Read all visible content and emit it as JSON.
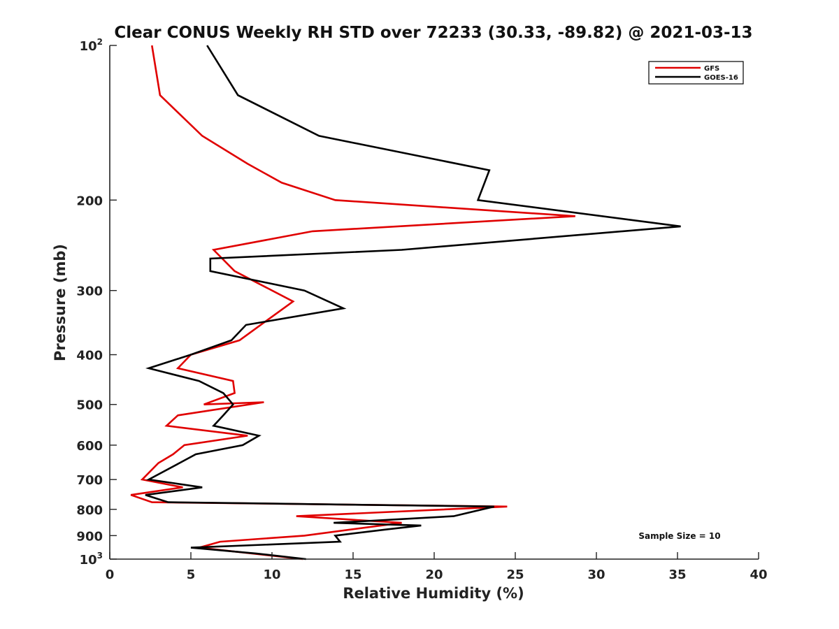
{
  "chart_data": {
    "type": "line",
    "title": "Clear CONUS Weekly RH STD over 72233 (30.33, -89.82) @ 2021-03-13",
    "xlabel": "Relative Humidity (%)",
    "ylabel": "Pressure (mb)",
    "xlim": [
      0,
      40
    ],
    "ylim": [
      100,
      1000
    ],
    "y_scale": "log",
    "y_reversed": true,
    "x_ticks": [
      {
        "value": 0,
        "label": "0"
      },
      {
        "value": 5,
        "label": "5"
      },
      {
        "value": 10,
        "label": "10"
      },
      {
        "value": 15,
        "label": "15"
      },
      {
        "value": 20,
        "label": "20"
      },
      {
        "value": 25,
        "label": "25"
      },
      {
        "value": 30,
        "label": "30"
      },
      {
        "value": 35,
        "label": "35"
      },
      {
        "value": 40,
        "label": "40"
      }
    ],
    "y_ticks": [
      {
        "value": 100,
        "label": "10",
        "sup": "2"
      },
      {
        "value": 200,
        "label": "200"
      },
      {
        "value": 300,
        "label": "300"
      },
      {
        "value": 400,
        "label": "400"
      },
      {
        "value": 500,
        "label": "500"
      },
      {
        "value": 600,
        "label": "600"
      },
      {
        "value": 700,
        "label": "700"
      },
      {
        "value": 800,
        "label": "800"
      },
      {
        "value": 900,
        "label": "900"
      },
      {
        "value": 1000,
        "label": "10",
        "sup": "3"
      }
    ],
    "grid": false,
    "legend_position": "top-right",
    "annotation": "Sample Size = 10",
    "series": [
      {
        "name": "GFS",
        "color": "#e00000",
        "points": [
          {
            "p": 100,
            "x": 2.6
          },
          {
            "p": 125,
            "x": 3.1
          },
          {
            "p": 150,
            "x": 5.7
          },
          {
            "p": 170,
            "x": 8.5
          },
          {
            "p": 185,
            "x": 10.6
          },
          {
            "p": 200,
            "x": 13.9
          },
          {
            "p": 215,
            "x": 28.7
          },
          {
            "p": 230,
            "x": 12.5
          },
          {
            "p": 250,
            "x": 6.4
          },
          {
            "p": 275,
            "x": 7.7
          },
          {
            "p": 315,
            "x": 11.3
          },
          {
            "p": 350,
            "x": 9.3
          },
          {
            "p": 375,
            "x": 8.0
          },
          {
            "p": 400,
            "x": 5.0
          },
          {
            "p": 425,
            "x": 4.2
          },
          {
            "p": 450,
            "x": 7.6
          },
          {
            "p": 475,
            "x": 7.7
          },
          {
            "p": 500,
            "x": 5.8
          },
          {
            "p": 495,
            "x": 9.5
          },
          {
            "p": 525,
            "x": 4.2
          },
          {
            "p": 550,
            "x": 3.5
          },
          {
            "p": 575,
            "x": 8.5
          },
          {
            "p": 600,
            "x": 4.6
          },
          {
            "p": 625,
            "x": 3.9
          },
          {
            "p": 650,
            "x": 3.0
          },
          {
            "p": 700,
            "x": 2.0
          },
          {
            "p": 725,
            "x": 4.5
          },
          {
            "p": 750,
            "x": 1.3
          },
          {
            "p": 775,
            "x": 2.6
          },
          {
            "p": 790,
            "x": 24.5
          },
          {
            "p": 825,
            "x": 11.5
          },
          {
            "p": 850,
            "x": 18.0
          },
          {
            "p": 900,
            "x": 12.0
          },
          {
            "p": 925,
            "x": 6.8
          },
          {
            "p": 950,
            "x": 5.5
          },
          {
            "p": 1000,
            "x": 11.9
          }
        ]
      },
      {
        "name": "GOES-16",
        "color": "#000000",
        "points": [
          {
            "p": 100,
            "x": 6.0
          },
          {
            "p": 125,
            "x": 7.9
          },
          {
            "p": 150,
            "x": 12.9
          },
          {
            "p": 175,
            "x": 23.4
          },
          {
            "p": 200,
            "x": 22.7
          },
          {
            "p": 225,
            "x": 35.2
          },
          {
            "p": 250,
            "x": 18.0
          },
          {
            "p": 260,
            "x": 6.2
          },
          {
            "p": 275,
            "x": 6.2
          },
          {
            "p": 300,
            "x": 12.0
          },
          {
            "p": 325,
            "x": 14.4
          },
          {
            "p": 350,
            "x": 8.4
          },
          {
            "p": 375,
            "x": 7.5
          },
          {
            "p": 400,
            "x": 5.0
          },
          {
            "p": 425,
            "x": 2.4
          },
          {
            "p": 450,
            "x": 5.5
          },
          {
            "p": 475,
            "x": 7.0
          },
          {
            "p": 500,
            "x": 7.6
          },
          {
            "p": 525,
            "x": 7.0
          },
          {
            "p": 550,
            "x": 6.4
          },
          {
            "p": 575,
            "x": 9.2
          },
          {
            "p": 600,
            "x": 8.2
          },
          {
            "p": 625,
            "x": 5.3
          },
          {
            "p": 650,
            "x": 4.3
          },
          {
            "p": 700,
            "x": 2.4
          },
          {
            "p": 725,
            "x": 5.7
          },
          {
            "p": 750,
            "x": 2.2
          },
          {
            "p": 775,
            "x": 3.6
          },
          {
            "p": 790,
            "x": 23.7
          },
          {
            "p": 825,
            "x": 21.2
          },
          {
            "p": 850,
            "x": 13.8
          },
          {
            "p": 860,
            "x": 19.2
          },
          {
            "p": 875,
            "x": 17.1
          },
          {
            "p": 900,
            "x": 13.9
          },
          {
            "p": 925,
            "x": 14.2
          },
          {
            "p": 950,
            "x": 5.0
          },
          {
            "p": 975,
            "x": 9.0
          },
          {
            "p": 1000,
            "x": 12.1
          }
        ]
      }
    ]
  }
}
